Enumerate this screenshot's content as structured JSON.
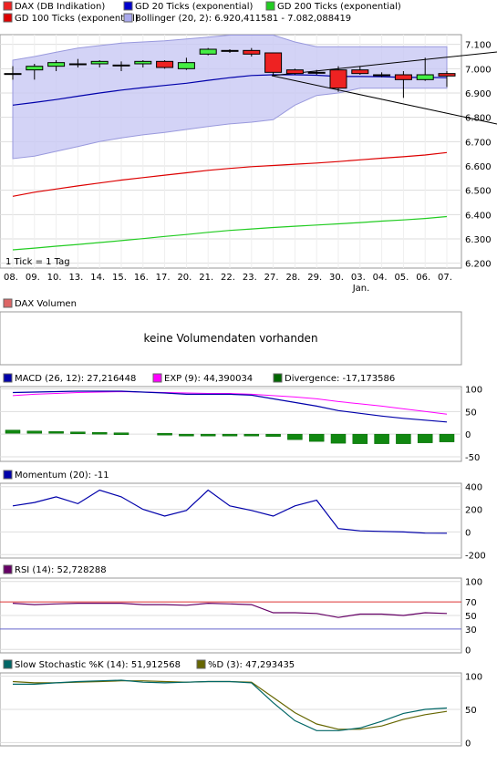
{
  "chart_data": [
    {
      "type": "candlestick",
      "legend": [
        {
          "label": "DAX (DB Indikation)",
          "color": "#ee2222"
        },
        {
          "label": "GD 20 Ticks (exponential)",
          "color": "#0000cc"
        },
        {
          "label": "GD 200 Ticks (exponential)",
          "color": "#22cc22"
        },
        {
          "label": "GD 100 Ticks (exponential)",
          "color": "#dd0000"
        },
        {
          "label": "Bollinger (20, 2): 6.920,411581 - 7.082,088419",
          "color": "#aaaaee"
        }
      ],
      "note": "1 Tick = 1 Tag",
      "x_ticks": [
        "08.",
        "09.",
        "10.",
        "13.",
        "14.",
        "15.",
        "16.",
        "17.",
        "20.",
        "21.",
        "22.",
        "23.",
        "27.",
        "28.",
        "29.",
        "30.",
        "03.",
        "04.",
        "05.",
        "06.",
        "07."
      ],
      "x_sublabel": "Jan.",
      "y_ticks": [
        "7.100",
        "7.000",
        "6.900",
        "6.800",
        "6.700",
        "6.600",
        "6.500",
        "6.400",
        "6.300",
        "6.200"
      ],
      "ylim": [
        6180,
        7140
      ],
      "candles": [
        {
          "o": 6980,
          "c": 6980,
          "h": 7010,
          "l": 6955
        },
        {
          "o": 6995,
          "c": 7010,
          "h": 7020,
          "l": 6955
        },
        {
          "o": 7010,
          "c": 7025,
          "h": 7035,
          "l": 6990
        },
        {
          "o": 7020,
          "c": 7020,
          "h": 7040,
          "l": 7005
        },
        {
          "o": 7020,
          "c": 7030,
          "h": 7035,
          "l": 7005
        },
        {
          "o": 7015,
          "c": 7015,
          "h": 7030,
          "l": 6990
        },
        {
          "o": 7020,
          "c": 7030,
          "h": 7035,
          "l": 7005
        },
        {
          "o": 7030,
          "c": 7005,
          "h": 7035,
          "l": 7000
        },
        {
          "o": 7000,
          "c": 7025,
          "h": 7045,
          "l": 6995
        },
        {
          "o": 7060,
          "c": 7080,
          "h": 7085,
          "l": 7055
        },
        {
          "o": 7075,
          "c": 7075,
          "h": 7080,
          "l": 7065
        },
        {
          "o": 7075,
          "c": 7060,
          "h": 7085,
          "l": 7050
        },
        {
          "o": 7065,
          "c": 6985,
          "h": 7065,
          "l": 6970
        },
        {
          "o": 6995,
          "c": 6980,
          "h": 7000,
          "l": 6975
        },
        {
          "o": 6985,
          "c": 6985,
          "h": 6995,
          "l": 6975
        },
        {
          "o": 6995,
          "c": 6920,
          "h": 7010,
          "l": 6905
        },
        {
          "o": 6995,
          "c": 6980,
          "h": 7010,
          "l": 6975
        },
        {
          "o": 6975,
          "c": 6975,
          "h": 6985,
          "l": 6965
        },
        {
          "o": 6975,
          "c": 6955,
          "h": 6990,
          "l": 6880
        },
        {
          "o": 6955,
          "c": 6975,
          "h": 7045,
          "l": 6950
        },
        {
          "o": 6980,
          "c": 6970,
          "h": 6990,
          "l": 6925
        }
      ],
      "gd20": [
        6850,
        6861,
        6873,
        6887,
        6900,
        6912,
        6922,
        6931,
        6940,
        6952,
        6963,
        6972,
        6975,
        6975,
        6973,
        6968,
        6968,
        6967,
        6964,
        6964,
        6963
      ],
      "gd100": [
        6475,
        6492,
        6505,
        6518,
        6530,
        6542,
        6552,
        6562,
        6572,
        6582,
        6590,
        6597,
        6602,
        6607,
        6612,
        6618,
        6625,
        6632,
        6638,
        6645,
        6655
      ],
      "gd200": [
        6255,
        6262,
        6270,
        6277,
        6285,
        6293,
        6301,
        6310,
        6318,
        6327,
        6335,
        6341,
        6347,
        6352,
        6357,
        6362,
        6367,
        6373,
        6378,
        6384,
        6392
      ],
      "boll_upper": [
        7035,
        7050,
        7068,
        7085,
        7095,
        7105,
        7110,
        7115,
        7122,
        7130,
        7138,
        7138,
        7138,
        7110,
        7090,
        7090,
        7090,
        7090,
        7090,
        7090,
        7090
      ],
      "boll_lower": [
        6630,
        6640,
        6660,
        6680,
        6700,
        6715,
        6728,
        6738,
        6750,
        6762,
        6773,
        6780,
        6790,
        6850,
        6890,
        6900,
        6920,
        6920,
        6920,
        6920,
        6920
      ]
    },
    {
      "type": "panel",
      "title": "DAX Volumen",
      "message": "keine Volumendaten vorhanden"
    },
    {
      "type": "line+bar",
      "legend": [
        {
          "label": "MACD (26, 12): 27,216448",
          "color": "#0000aa"
        },
        {
          "label": "EXP (9): 44,390034",
          "color": "#ff00ff"
        },
        {
          "label": "Divergence: -17,173586",
          "color": "#006600"
        }
      ],
      "y_ticks": [
        "100",
        "50",
        "0",
        "-50"
      ],
      "ylim": [
        -60,
        105
      ],
      "macd": [
        92,
        93,
        94,
        95,
        95,
        95,
        93,
        91,
        88,
        88,
        88,
        86,
        78,
        70,
        62,
        52,
        46,
        40,
        35,
        31,
        27
      ],
      "exp": [
        85,
        88,
        90,
        92,
        93,
        94,
        93,
        92,
        91,
        90,
        90,
        88,
        85,
        82,
        78,
        72,
        67,
        62,
        56,
        50,
        44
      ],
      "divergence": [
        7,
        5,
        4,
        3,
        2,
        1,
        null,
        0,
        -1,
        -2,
        -2,
        -2,
        -5,
        -12,
        -16,
        -20,
        -21,
        -21,
        -21,
        -19,
        -17
      ]
    },
    {
      "type": "line",
      "legend": [
        {
          "label": "Momentum (20): -11",
          "color": "#0000aa"
        }
      ],
      "y_ticks": [
        "400",
        "200",
        "0",
        "-200"
      ],
      "ylim": [
        -230,
        430
      ],
      "values": [
        230,
        260,
        310,
        250,
        370,
        310,
        200,
        140,
        190,
        370,
        230,
        190,
        140,
        230,
        280,
        30,
        10,
        5,
        0,
        -10,
        -11
      ]
    },
    {
      "type": "line",
      "legend": [
        {
          "label": "RSI (14): 52,728288",
          "color": "#660066"
        }
      ],
      "y_ticks": [
        "100",
        "50",
        "0"
      ],
      "ylim": [
        -5,
        105
      ],
      "levels": [
        {
          "value": 70,
          "label": "70",
          "color": "#dd3333"
        },
        {
          "value": 30,
          "label": "30",
          "color": "#6666cc"
        }
      ],
      "values": [
        68,
        66,
        67,
        68,
        68,
        68,
        66,
        66,
        65,
        68,
        67,
        66,
        54,
        54,
        53,
        47,
        52,
        52,
        50,
        54,
        53
      ]
    },
    {
      "type": "line",
      "legend": [
        {
          "label": "Slow Stochastic %K (14): 51,912568",
          "color": "#006666"
        },
        {
          "label": "%D (3): 47,293435",
          "color": "#666600"
        }
      ],
      "y_ticks": [
        "100",
        "50",
        "0"
      ],
      "ylim": [
        -5,
        105
      ],
      "k": [
        88,
        88,
        90,
        92,
        93,
        94,
        91,
        90,
        91,
        92,
        92,
        90,
        60,
        33,
        18,
        18,
        22,
        32,
        44,
        50,
        52
      ],
      "d": [
        92,
        90,
        90,
        91,
        92,
        93,
        93,
        92,
        91,
        92,
        92,
        91,
        68,
        45,
        28,
        20,
        20,
        25,
        35,
        42,
        47
      ]
    }
  ]
}
